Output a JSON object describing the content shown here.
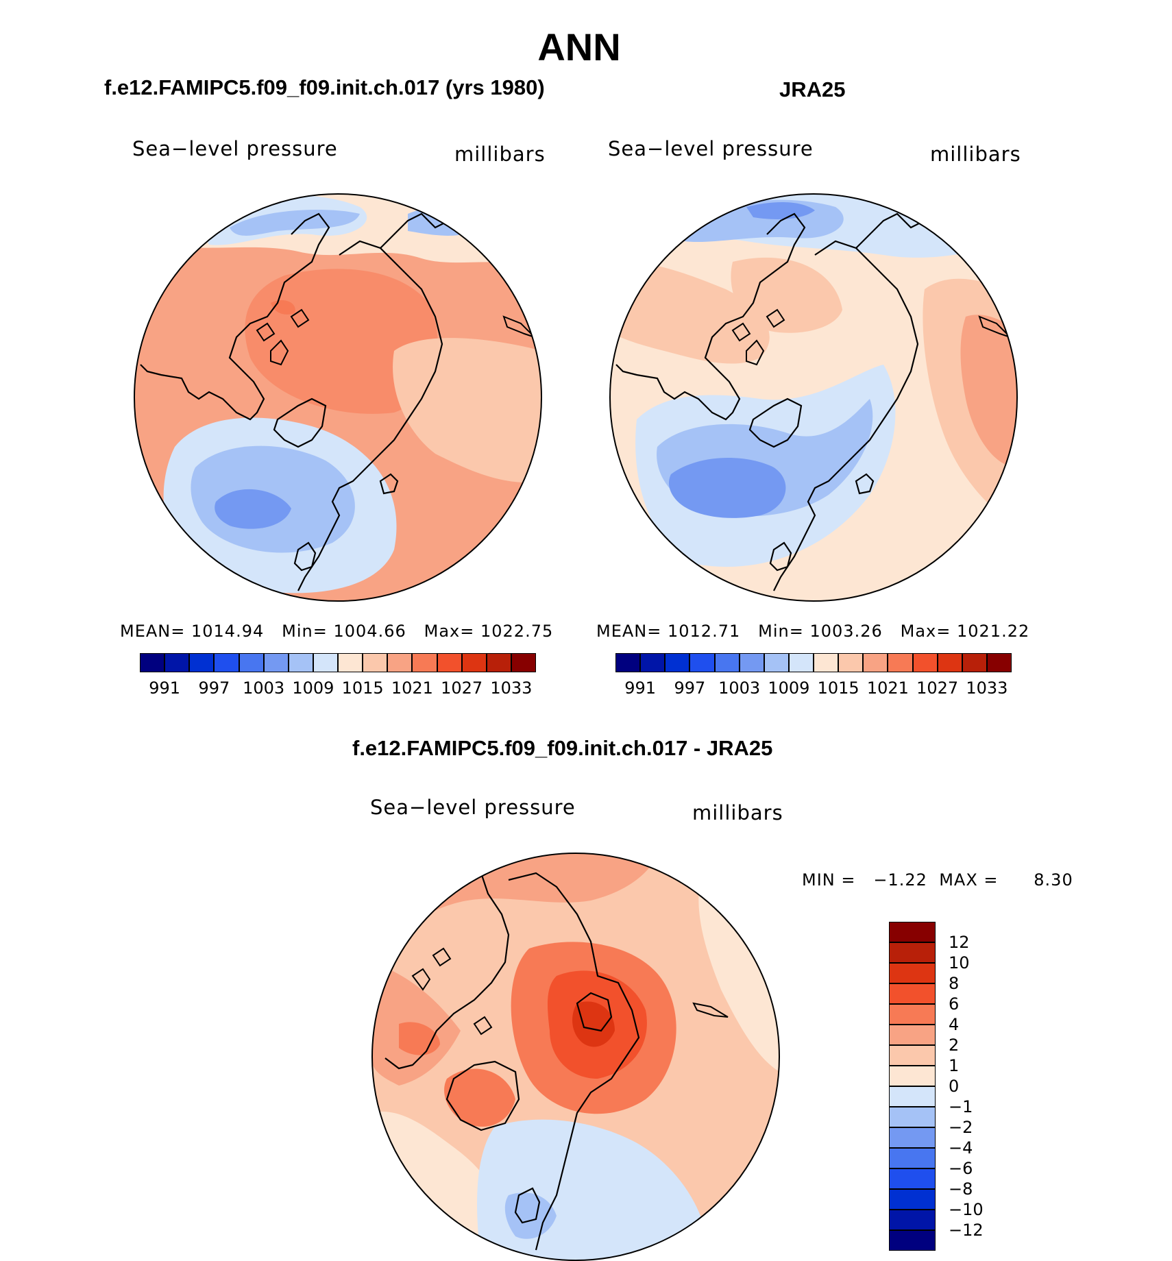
{
  "title": "ANN",
  "panels": [
    {
      "id": "model",
      "title": "f.e12.FAMIPC5.f09_f09.init.ch.017 (yrs 1980)",
      "field": "Sea−level pressure",
      "units": "millibars",
      "stats": {
        "mean_label": "MEAN=",
        "mean": "1014.94",
        "min_label": "Min=",
        "min": "1004.66",
        "max_label": "Max=",
        "max": "1022.75"
      }
    },
    {
      "id": "obs",
      "title": "JRA25",
      "field": "Sea−level pressure",
      "units": "millibars",
      "stats": {
        "mean_label": "MEAN=",
        "mean": "1012.71",
        "min_label": "Min=",
        "min": "1003.26",
        "max_label": "Max=",
        "max": "1021.22"
      }
    }
  ],
  "abs_colorbar": {
    "colors": [
      "#00007f",
      "#0015a8",
      "#0030d2",
      "#1f4fee",
      "#4876f0",
      "#7499f2",
      "#a5c2f6",
      "#d4e5fa",
      "#fde6d3",
      "#fbc8ac",
      "#f8a384",
      "#f77a55",
      "#f2512c",
      "#dd3512",
      "#b82009",
      "#870000"
    ],
    "labels": [
      "991",
      "997",
      "1003",
      "1009",
      "1015",
      "1021",
      "1027",
      "1033"
    ]
  },
  "diff": {
    "title": "f.e12.FAMIPC5.f09_f09.init.ch.017 - JRA25",
    "field": "Sea−level pressure",
    "units": "millibars",
    "stats": {
      "min_label": "MIN =",
      "min": "−1.22",
      "max_label": "MAX =",
      "max": "8.30"
    },
    "colorbar": {
      "colors": [
        "#870000",
        "#b82009",
        "#dd3512",
        "#f2512c",
        "#f77a55",
        "#f8a384",
        "#fbc8ac",
        "#fde6d3",
        "#d4e5fa",
        "#a5c2f6",
        "#7499f2",
        "#4876f0",
        "#1f4fee",
        "#0030d2",
        "#0015a8",
        "#00007f"
      ],
      "labels": [
        "12",
        "10",
        "8",
        "6",
        "4",
        "2",
        "1",
        "0",
        "−1",
        "−2",
        "−4",
        "−6",
        "−8",
        "−10",
        "−12"
      ]
    }
  }
}
